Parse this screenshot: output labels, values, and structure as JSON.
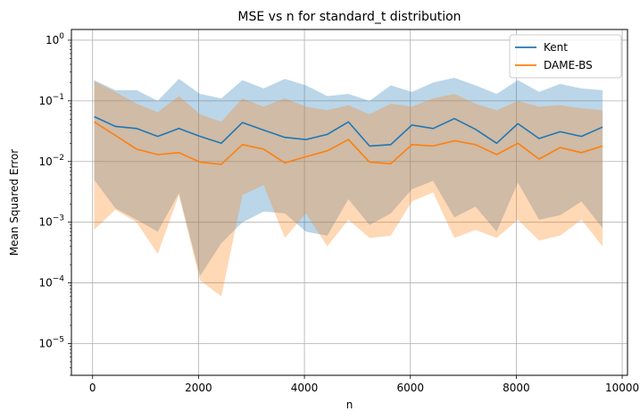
{
  "chart_data": {
    "type": "line",
    "title": "MSE vs n for standard_t distribution",
    "xlabel": "n",
    "ylabel": "Mean Squared Error",
    "xlim": [
      -400,
      10100
    ],
    "ylim": [
      3e-06,
      1.5
    ],
    "yscale": "log",
    "grid": true,
    "legend_position": "upper right",
    "x_ticks": [
      0,
      2000,
      4000,
      6000,
      8000,
      10000
    ],
    "x_tick_labels": [
      "0",
      "2000",
      "4000",
      "6000",
      "8000",
      "10000"
    ],
    "y_ticks": [
      1e-05,
      0.0001,
      0.001,
      0.01,
      0.1,
      1
    ],
    "y_tick_labels": [
      {
        "base": "10",
        "exp": "−5"
      },
      {
        "base": "10",
        "exp": "−4"
      },
      {
        "base": "10",
        "exp": "−3"
      },
      {
        "base": "10",
        "exp": "−2"
      },
      {
        "base": "10",
        "exp": "−1"
      },
      {
        "base": "10",
        "exp": "0"
      }
    ],
    "x": [
      30,
      430,
      830,
      1230,
      1630,
      2030,
      2430,
      2830,
      3230,
      3630,
      4030,
      4430,
      4830,
      5230,
      5630,
      6030,
      6430,
      6830,
      7230,
      7630,
      8030,
      8430,
      8830,
      9230,
      9630
    ],
    "series": [
      {
        "name": "Kent",
        "color": "#1f77b4",
        "values": [
          0.055,
          0.038,
          0.035,
          0.026,
          0.035,
          0.026,
          0.02,
          0.044,
          0.033,
          0.025,
          0.023,
          0.028,
          0.045,
          0.018,
          0.019,
          0.04,
          0.035,
          0.051,
          0.034,
          0.02,
          0.042,
          0.024,
          0.031,
          0.026,
          0.037
        ],
        "upper": [
          0.22,
          0.15,
          0.15,
          0.1,
          0.23,
          0.13,
          0.11,
          0.22,
          0.16,
          0.23,
          0.18,
          0.12,
          0.13,
          0.1,
          0.18,
          0.14,
          0.2,
          0.24,
          0.18,
          0.13,
          0.22,
          0.14,
          0.19,
          0.16,
          0.15
        ],
        "lower": [
          0.005,
          0.0017,
          0.0011,
          0.0007,
          0.003,
          0.00013,
          0.00045,
          0.001,
          0.0015,
          0.0014,
          0.0007,
          0.0006,
          0.0024,
          0.0009,
          0.0014,
          0.0035,
          0.0048,
          0.0012,
          0.0018,
          0.0007,
          0.0045,
          0.0011,
          0.0013,
          0.0022,
          0.0008
        ]
      },
      {
        "name": "DAME-BS",
        "color": "#ff7f0e",
        "values": [
          0.045,
          0.027,
          0.016,
          0.013,
          0.014,
          0.0098,
          0.009,
          0.019,
          0.016,
          0.0095,
          0.012,
          0.015,
          0.023,
          0.0098,
          0.0092,
          0.019,
          0.018,
          0.022,
          0.019,
          0.013,
          0.02,
          0.011,
          0.017,
          0.014,
          0.018
        ],
        "upper": [
          0.21,
          0.14,
          0.09,
          0.065,
          0.12,
          0.06,
          0.045,
          0.11,
          0.08,
          0.11,
          0.08,
          0.07,
          0.085,
          0.06,
          0.09,
          0.08,
          0.11,
          0.13,
          0.09,
          0.07,
          0.1,
          0.08,
          0.085,
          0.075,
          0.07
        ],
        "lower": [
          0.00075,
          0.0016,
          0.001,
          0.0003,
          0.0028,
          0.00011,
          6e-05,
          0.0028,
          0.0041,
          0.00055,
          0.0014,
          0.0004,
          0.0011,
          0.00055,
          0.0006,
          0.0022,
          0.0031,
          0.00055,
          0.00075,
          0.00055,
          0.0011,
          0.0005,
          0.0006,
          0.0011,
          0.0004
        ]
      }
    ]
  }
}
